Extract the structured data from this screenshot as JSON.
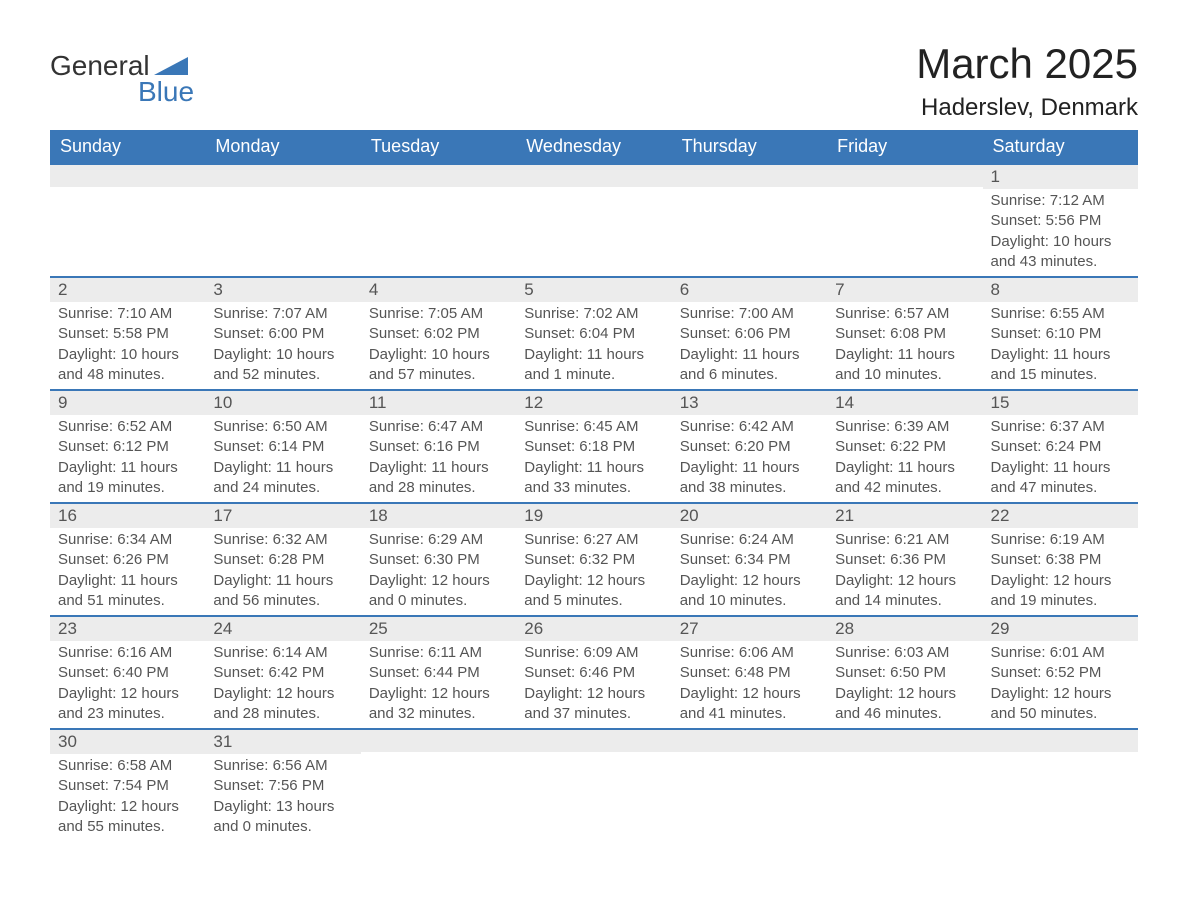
{
  "logo": {
    "top": "General",
    "bottom": "Blue",
    "brand_color": "#3a77b7"
  },
  "title": "March 2025",
  "location": "Haderslev, Denmark",
  "colors": {
    "header_bg": "#3a77b7",
    "header_text": "#ffffff",
    "daynum_bg": "#ececec",
    "text_color": "#555555",
    "row_border": "#3a77b7",
    "page_bg": "#ffffff"
  },
  "typography": {
    "title_fontsize": 42,
    "location_fontsize": 24,
    "header_fontsize": 18,
    "daynum_fontsize": 17,
    "body_fontsize": 15
  },
  "weekdays": [
    "Sunday",
    "Monday",
    "Tuesday",
    "Wednesday",
    "Thursday",
    "Friday",
    "Saturday"
  ],
  "weeks": [
    [
      {
        "day": "",
        "lines": []
      },
      {
        "day": "",
        "lines": []
      },
      {
        "day": "",
        "lines": []
      },
      {
        "day": "",
        "lines": []
      },
      {
        "day": "",
        "lines": []
      },
      {
        "day": "",
        "lines": []
      },
      {
        "day": "1",
        "lines": [
          "Sunrise: 7:12 AM",
          "Sunset: 5:56 PM",
          "Daylight: 10 hours and 43 minutes."
        ]
      }
    ],
    [
      {
        "day": "2",
        "lines": [
          "Sunrise: 7:10 AM",
          "Sunset: 5:58 PM",
          "Daylight: 10 hours and 48 minutes."
        ]
      },
      {
        "day": "3",
        "lines": [
          "Sunrise: 7:07 AM",
          "Sunset: 6:00 PM",
          "Daylight: 10 hours and 52 minutes."
        ]
      },
      {
        "day": "4",
        "lines": [
          "Sunrise: 7:05 AM",
          "Sunset: 6:02 PM",
          "Daylight: 10 hours and 57 minutes."
        ]
      },
      {
        "day": "5",
        "lines": [
          "Sunrise: 7:02 AM",
          "Sunset: 6:04 PM",
          "Daylight: 11 hours and 1 minute."
        ]
      },
      {
        "day": "6",
        "lines": [
          "Sunrise: 7:00 AM",
          "Sunset: 6:06 PM",
          "Daylight: 11 hours and 6 minutes."
        ]
      },
      {
        "day": "7",
        "lines": [
          "Sunrise: 6:57 AM",
          "Sunset: 6:08 PM",
          "Daylight: 11 hours and 10 minutes."
        ]
      },
      {
        "day": "8",
        "lines": [
          "Sunrise: 6:55 AM",
          "Sunset: 6:10 PM",
          "Daylight: 11 hours and 15 minutes."
        ]
      }
    ],
    [
      {
        "day": "9",
        "lines": [
          "Sunrise: 6:52 AM",
          "Sunset: 6:12 PM",
          "Daylight: 11 hours and 19 minutes."
        ]
      },
      {
        "day": "10",
        "lines": [
          "Sunrise: 6:50 AM",
          "Sunset: 6:14 PM",
          "Daylight: 11 hours and 24 minutes."
        ]
      },
      {
        "day": "11",
        "lines": [
          "Sunrise: 6:47 AM",
          "Sunset: 6:16 PM",
          "Daylight: 11 hours and 28 minutes."
        ]
      },
      {
        "day": "12",
        "lines": [
          "Sunrise: 6:45 AM",
          "Sunset: 6:18 PM",
          "Daylight: 11 hours and 33 minutes."
        ]
      },
      {
        "day": "13",
        "lines": [
          "Sunrise: 6:42 AM",
          "Sunset: 6:20 PM",
          "Daylight: 11 hours and 38 minutes."
        ]
      },
      {
        "day": "14",
        "lines": [
          "Sunrise: 6:39 AM",
          "Sunset: 6:22 PM",
          "Daylight: 11 hours and 42 minutes."
        ]
      },
      {
        "day": "15",
        "lines": [
          "Sunrise: 6:37 AM",
          "Sunset: 6:24 PM",
          "Daylight: 11 hours and 47 minutes."
        ]
      }
    ],
    [
      {
        "day": "16",
        "lines": [
          "Sunrise: 6:34 AM",
          "Sunset: 6:26 PM",
          "Daylight: 11 hours and 51 minutes."
        ]
      },
      {
        "day": "17",
        "lines": [
          "Sunrise: 6:32 AM",
          "Sunset: 6:28 PM",
          "Daylight: 11 hours and 56 minutes."
        ]
      },
      {
        "day": "18",
        "lines": [
          "Sunrise: 6:29 AM",
          "Sunset: 6:30 PM",
          "Daylight: 12 hours and 0 minutes."
        ]
      },
      {
        "day": "19",
        "lines": [
          "Sunrise: 6:27 AM",
          "Sunset: 6:32 PM",
          "Daylight: 12 hours and 5 minutes."
        ]
      },
      {
        "day": "20",
        "lines": [
          "Sunrise: 6:24 AM",
          "Sunset: 6:34 PM",
          "Daylight: 12 hours and 10 minutes."
        ]
      },
      {
        "day": "21",
        "lines": [
          "Sunrise: 6:21 AM",
          "Sunset: 6:36 PM",
          "Daylight: 12 hours and 14 minutes."
        ]
      },
      {
        "day": "22",
        "lines": [
          "Sunrise: 6:19 AM",
          "Sunset: 6:38 PM",
          "Daylight: 12 hours and 19 minutes."
        ]
      }
    ],
    [
      {
        "day": "23",
        "lines": [
          "Sunrise: 6:16 AM",
          "Sunset: 6:40 PM",
          "Daylight: 12 hours and 23 minutes."
        ]
      },
      {
        "day": "24",
        "lines": [
          "Sunrise: 6:14 AM",
          "Sunset: 6:42 PM",
          "Daylight: 12 hours and 28 minutes."
        ]
      },
      {
        "day": "25",
        "lines": [
          "Sunrise: 6:11 AM",
          "Sunset: 6:44 PM",
          "Daylight: 12 hours and 32 minutes."
        ]
      },
      {
        "day": "26",
        "lines": [
          "Sunrise: 6:09 AM",
          "Sunset: 6:46 PM",
          "Daylight: 12 hours and 37 minutes."
        ]
      },
      {
        "day": "27",
        "lines": [
          "Sunrise: 6:06 AM",
          "Sunset: 6:48 PM",
          "Daylight: 12 hours and 41 minutes."
        ]
      },
      {
        "day": "28",
        "lines": [
          "Sunrise: 6:03 AM",
          "Sunset: 6:50 PM",
          "Daylight: 12 hours and 46 minutes."
        ]
      },
      {
        "day": "29",
        "lines": [
          "Sunrise: 6:01 AM",
          "Sunset: 6:52 PM",
          "Daylight: 12 hours and 50 minutes."
        ]
      }
    ],
    [
      {
        "day": "30",
        "lines": [
          "Sunrise: 6:58 AM",
          "Sunset: 7:54 PM",
          "Daylight: 12 hours and 55 minutes."
        ]
      },
      {
        "day": "31",
        "lines": [
          "Sunrise: 6:56 AM",
          "Sunset: 7:56 PM",
          "Daylight: 13 hours and 0 minutes."
        ]
      },
      {
        "day": "",
        "lines": []
      },
      {
        "day": "",
        "lines": []
      },
      {
        "day": "",
        "lines": []
      },
      {
        "day": "",
        "lines": []
      },
      {
        "day": "",
        "lines": []
      }
    ]
  ]
}
